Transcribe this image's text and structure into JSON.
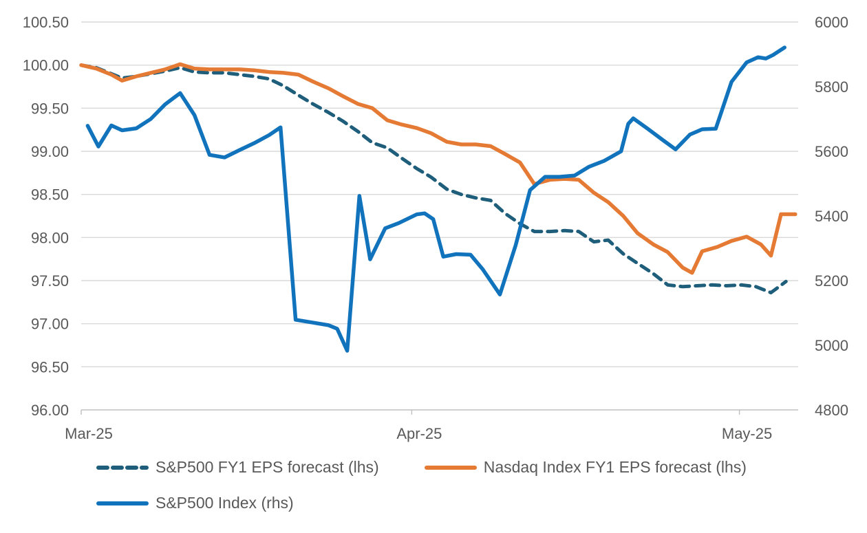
{
  "chart_data": {
    "type": "line",
    "title": "",
    "grid": true,
    "legend_position": "bottom-left",
    "left_axis": {
      "min": 96.0,
      "max": 100.5,
      "step": 0.5,
      "tick_labels": [
        "100.50",
        "100.00",
        "99.50",
        "99.00",
        "98.50",
        "98.00",
        "97.50",
        "97.00",
        "96.50",
        "96.00"
      ]
    },
    "right_axis": {
      "min": 4800,
      "max": 6000,
      "step": 200,
      "tick_labels": [
        "6000",
        "5800",
        "5600",
        "5400",
        "5200",
        "5000",
        "4800"
      ]
    },
    "x_axis": {
      "ticks": [
        {
          "label": "Mar-25",
          "pct": 0
        },
        {
          "label": "Apr-25",
          "pct": 46.1
        },
        {
          "label": "May-25",
          "pct": 91.8
        }
      ]
    },
    "series": [
      {
        "name": "S&P500 FY1 EPS forecast (lhs)",
        "axis": "left",
        "style": "dashed",
        "color": "#1E5E7B",
        "points": [
          [
            0,
            100.0
          ],
          [
            2.1,
            99.97
          ],
          [
            4.2,
            99.9
          ],
          [
            5.7,
            99.85
          ],
          [
            7.7,
            99.87
          ],
          [
            9.7,
            99.9
          ],
          [
            11.7,
            99.93
          ],
          [
            13.8,
            99.97
          ],
          [
            15.8,
            99.92
          ],
          [
            17.9,
            99.91
          ],
          [
            20,
            99.91
          ],
          [
            22.1,
            99.89
          ],
          [
            24.1,
            99.87
          ],
          [
            26.2,
            99.84
          ],
          [
            28.2,
            99.76
          ],
          [
            30.3,
            99.65
          ],
          [
            32.3,
            99.55
          ],
          [
            34.5,
            99.45
          ],
          [
            36.5,
            99.35
          ],
          [
            38.6,
            99.23
          ],
          [
            40.6,
            99.1
          ],
          [
            42.7,
            99.04
          ],
          [
            44.7,
            98.92
          ],
          [
            46.8,
            98.8
          ],
          [
            48.8,
            98.7
          ],
          [
            51,
            98.56
          ],
          [
            53,
            98.5
          ],
          [
            55,
            98.46
          ],
          [
            57.1,
            98.43
          ],
          [
            59.1,
            98.28
          ],
          [
            61.2,
            98.16
          ],
          [
            63.2,
            98.07
          ],
          [
            65.4,
            98.07
          ],
          [
            67.4,
            98.08
          ],
          [
            69.4,
            98.07
          ],
          [
            71.5,
            97.95
          ],
          [
            73.5,
            97.97
          ],
          [
            75.6,
            97.81
          ],
          [
            77.6,
            97.7
          ],
          [
            79.8,
            97.58
          ],
          [
            81.8,
            97.45
          ],
          [
            83.9,
            97.43
          ],
          [
            85.9,
            97.44
          ],
          [
            88,
            97.45
          ],
          [
            90,
            97.44
          ],
          [
            92.1,
            97.45
          ],
          [
            94.1,
            97.43
          ],
          [
            96.2,
            97.36
          ],
          [
            98.3,
            97.49
          ]
        ]
      },
      {
        "name": "Nasdaq Index FY1 EPS forecast (lhs)",
        "axis": "left",
        "style": "solid",
        "color": "#E57A35",
        "points": [
          [
            0,
            100.0
          ],
          [
            2.1,
            99.96
          ],
          [
            4.2,
            99.89
          ],
          [
            5.7,
            99.82
          ],
          [
            7.7,
            99.87
          ],
          [
            9.7,
            99.91
          ],
          [
            11.7,
            99.95
          ],
          [
            13.8,
            100.01
          ],
          [
            15.8,
            99.96
          ],
          [
            17.9,
            99.95
          ],
          [
            20,
            99.95
          ],
          [
            22.1,
            99.95
          ],
          [
            24.1,
            99.94
          ],
          [
            26.2,
            99.92
          ],
          [
            28.2,
            99.91
          ],
          [
            30.3,
            99.89
          ],
          [
            32.3,
            99.81
          ],
          [
            34.5,
            99.73
          ],
          [
            36.5,
            99.64
          ],
          [
            38.6,
            99.55
          ],
          [
            40.6,
            99.5
          ],
          [
            42.7,
            99.36
          ],
          [
            44.7,
            99.31
          ],
          [
            46.8,
            99.27
          ],
          [
            48.8,
            99.21
          ],
          [
            51,
            99.11
          ],
          [
            53,
            99.08
          ],
          [
            55,
            99.08
          ],
          [
            57.1,
            99.06
          ],
          [
            59.1,
            98.97
          ],
          [
            61.2,
            98.87
          ],
          [
            63.2,
            98.62
          ],
          [
            65.4,
            98.67
          ],
          [
            67.4,
            98.68
          ],
          [
            69.4,
            98.67
          ],
          [
            71.5,
            98.52
          ],
          [
            73.5,
            98.41
          ],
          [
            75.6,
            98.25
          ],
          [
            77.6,
            98.05
          ],
          [
            79.8,
            97.92
          ],
          [
            81.8,
            97.83
          ],
          [
            83.9,
            97.65
          ],
          [
            85.2,
            97.59
          ],
          [
            86.6,
            97.84
          ],
          [
            88.7,
            97.89
          ],
          [
            90.7,
            97.96
          ],
          [
            92.8,
            98.01
          ],
          [
            94.8,
            97.92
          ],
          [
            96.2,
            97.79
          ],
          [
            97.6,
            98.27
          ],
          [
            99.6,
            98.27
          ]
        ]
      },
      {
        "name": "S&P500 Index (rhs)",
        "axis": "right",
        "style": "solid",
        "color": "#1273BD",
        "points": [
          [
            0.9,
            5679
          ],
          [
            2.4,
            5615
          ],
          [
            4.2,
            5680
          ],
          [
            5.7,
            5665
          ],
          [
            7.7,
            5671
          ],
          [
            9.7,
            5700
          ],
          [
            11.7,
            5745
          ],
          [
            13.8,
            5780
          ],
          [
            15.8,
            5712
          ],
          [
            17.9,
            5589
          ],
          [
            20,
            5581
          ],
          [
            22.1,
            5604
          ],
          [
            24.1,
            5625
          ],
          [
            26.2,
            5650
          ],
          [
            27.8,
            5674
          ],
          [
            29.9,
            5079
          ],
          [
            32.3,
            5070
          ],
          [
            34.5,
            5062
          ],
          [
            35.7,
            5051
          ],
          [
            37.1,
            4983
          ],
          [
            38.8,
            5462
          ],
          [
            40.3,
            5266
          ],
          [
            42.4,
            5362
          ],
          [
            44.3,
            5378
          ],
          [
            46.8,
            5405
          ],
          [
            47.9,
            5408
          ],
          [
            49.1,
            5390
          ],
          [
            50.5,
            5274
          ],
          [
            52.3,
            5282
          ],
          [
            54.3,
            5280
          ],
          [
            56,
            5235
          ],
          [
            58.4,
            5157
          ],
          [
            60.6,
            5310
          ],
          [
            62.6,
            5480
          ],
          [
            64.7,
            5521
          ],
          [
            66.7,
            5521
          ],
          [
            68.8,
            5525
          ],
          [
            70.8,
            5552
          ],
          [
            72.9,
            5570
          ],
          [
            75.3,
            5600
          ],
          [
            76.3,
            5685
          ],
          [
            77,
            5702
          ],
          [
            79,
            5670
          ],
          [
            81.1,
            5635
          ],
          [
            82.9,
            5606
          ],
          [
            84.9,
            5652
          ],
          [
            86.6,
            5668
          ],
          [
            88.5,
            5670
          ],
          [
            90.7,
            5815
          ],
          [
            92.8,
            5875
          ],
          [
            94.4,
            5891
          ],
          [
            95.5,
            5887
          ],
          [
            96.5,
            5898
          ],
          [
            98.1,
            5921
          ]
        ]
      }
    ],
    "colors": {
      "gridline": "#D9D9D9",
      "axis_line": "#BFBFBF",
      "tick_mark": "#BFBFBF",
      "label_text": "#595959"
    }
  },
  "legend": {
    "row1_item1": "S&P500 FY1 EPS forecast (lhs)",
    "row1_item2": "Nasdaq Index FY1 EPS forecast (lhs)",
    "row2_item1": "S&P500 Index (rhs)"
  }
}
